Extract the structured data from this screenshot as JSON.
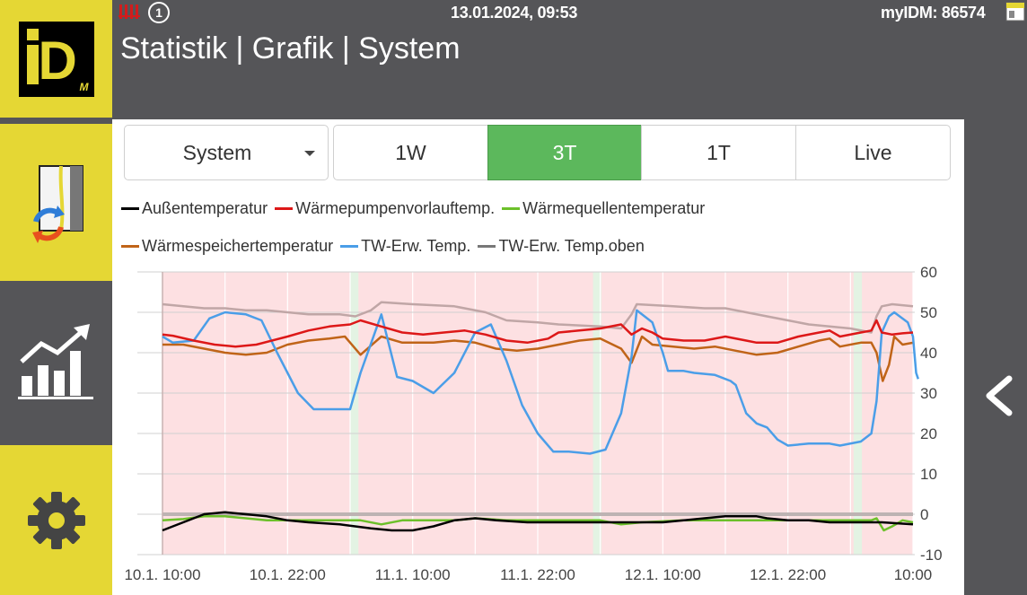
{
  "header": {
    "datetime": "13.01.2024, 09:53",
    "device_id": "myIDM: 86574",
    "badge": "1",
    "title": "Statistik | Grafik | System"
  },
  "sidebar": {
    "items": [
      {
        "name": "idm-logo",
        "icon": "idm-logo"
      },
      {
        "name": "switch-view",
        "icon": "device-switch-icon"
      },
      {
        "name": "statistics",
        "icon": "chart-icon"
      },
      {
        "name": "settings",
        "icon": "gear-icon"
      }
    ]
  },
  "controls": {
    "select": "System",
    "ranges": [
      "1W",
      "3T",
      "1T",
      "Live"
    ],
    "active_range": "3T"
  },
  "colors": {
    "accent_yellow": "#e5d734",
    "active_green": "#5cb85c",
    "background": "#555558"
  },
  "chart_data": {
    "type": "line",
    "ylim": [
      -10,
      60
    ],
    "yticks": [
      "60",
      "50",
      "40",
      "30",
      "20",
      "10",
      "0",
      "-10"
    ],
    "xticks": [
      "10.1. 10:00",
      "10.1. 22:00",
      "11.1. 10:00",
      "11.1. 22:00",
      "12.1. 10:00",
      "12.1. 22:00",
      "10:00"
    ],
    "x_hours": [
      0,
      72
    ],
    "series": [
      {
        "name": "Außentemperatur",
        "color": "#000000",
        "points": [
          [
            0,
            -4
          ],
          [
            2,
            -2
          ],
          [
            4,
            0
          ],
          [
            6,
            0.5
          ],
          [
            8,
            0
          ],
          [
            10,
            -0.5
          ],
          [
            12,
            -1.5
          ],
          [
            14,
            -2
          ],
          [
            17,
            -2.5
          ],
          [
            20,
            -3.5
          ],
          [
            22,
            -4
          ],
          [
            24,
            -4
          ],
          [
            26,
            -3
          ],
          [
            28,
            -1.5
          ],
          [
            30,
            -1
          ],
          [
            32,
            -1.5
          ],
          [
            35,
            -2
          ],
          [
            38,
            -2
          ],
          [
            42,
            -2
          ],
          [
            46,
            -2
          ],
          [
            48,
            -2
          ],
          [
            50,
            -1.5
          ],
          [
            52,
            -1
          ],
          [
            54,
            -0.5
          ],
          [
            57,
            -0.5
          ],
          [
            58,
            -1
          ],
          [
            60,
            -1.5
          ],
          [
            62,
            -1.5
          ],
          [
            64,
            -2
          ],
          [
            66,
            -2
          ],
          [
            67,
            -2
          ],
          [
            69,
            -2
          ],
          [
            72,
            -2.5
          ]
        ]
      },
      {
        "name": "Wärmepumpenvorlauftemp.",
        "color": "#dd1818",
        "points": [
          [
            0,
            44.5
          ],
          [
            1,
            44.2
          ],
          [
            3,
            43
          ],
          [
            5,
            42
          ],
          [
            7,
            41.5
          ],
          [
            9,
            42
          ],
          [
            12,
            44
          ],
          [
            14,
            45.5
          ],
          [
            16,
            46.5
          ],
          [
            18,
            47
          ],
          [
            19,
            48
          ],
          [
            21,
            46.5
          ],
          [
            23,
            45
          ],
          [
            25,
            44.5
          ],
          [
            27,
            45
          ],
          [
            29,
            45.5
          ],
          [
            31,
            44.5
          ],
          [
            33,
            43
          ],
          [
            35,
            42.5
          ],
          [
            37,
            43.5
          ],
          [
            38,
            45
          ],
          [
            40,
            45.5
          ],
          [
            42,
            46
          ],
          [
            44,
            47
          ],
          [
            45,
            44.5
          ],
          [
            46,
            46
          ],
          [
            47,
            45
          ],
          [
            48,
            43.5
          ],
          [
            50,
            43
          ],
          [
            52,
            43
          ],
          [
            54,
            44
          ],
          [
            56,
            43
          ],
          [
            57,
            42.5
          ],
          [
            59,
            42.5
          ],
          [
            61,
            44
          ],
          [
            63,
            45
          ],
          [
            64,
            45.5
          ],
          [
            65,
            44
          ],
          [
            67,
            45
          ],
          [
            68,
            45.5
          ],
          [
            68.5,
            48
          ],
          [
            69,
            45
          ],
          [
            70,
            44.5
          ],
          [
            71,
            44.8
          ],
          [
            72,
            45
          ]
        ]
      },
      {
        "name": "Wärmequellentemperatur",
        "color": "#6cc02a",
        "points": [
          [
            0,
            -1.5
          ],
          [
            2,
            -1.2
          ],
          [
            4,
            -0.5
          ],
          [
            6,
            -0.5
          ],
          [
            8,
            -1
          ],
          [
            10,
            -1.5
          ],
          [
            14,
            -1.5
          ],
          [
            16,
            -1.5
          ],
          [
            18,
            -1.5
          ],
          [
            19,
            -1.5
          ],
          [
            21,
            -2.5
          ],
          [
            23,
            -1.5
          ],
          [
            26,
            -1.5
          ],
          [
            28,
            -1.5
          ],
          [
            30,
            -1
          ],
          [
            33,
            -1.5
          ],
          [
            36,
            -1.5
          ],
          [
            38,
            -1.5
          ],
          [
            40,
            -1.5
          ],
          [
            42,
            -1.5
          ],
          [
            44,
            -2.5
          ],
          [
            46,
            -2
          ],
          [
            50,
            -1.5
          ],
          [
            53,
            -1.5
          ],
          [
            56,
            -1.5
          ],
          [
            59,
            -1.5
          ],
          [
            62,
            -1.5
          ],
          [
            64,
            -1.5
          ],
          [
            66,
            -1.5
          ],
          [
            67,
            -1.5
          ],
          [
            68,
            -1.5
          ],
          [
            68.5,
            -1
          ],
          [
            69.2,
            -4
          ],
          [
            70,
            -3
          ],
          [
            71,
            -1.5
          ],
          [
            72,
            -2
          ]
        ]
      },
      {
        "name": "Wärmespeichertemperatur",
        "color": "#c06418",
        "points": [
          [
            0,
            42
          ],
          [
            2,
            42
          ],
          [
            4,
            41
          ],
          [
            6,
            40
          ],
          [
            8,
            39.5
          ],
          [
            10,
            40
          ],
          [
            12,
            42
          ],
          [
            14,
            43
          ],
          [
            16,
            43.5
          ],
          [
            17.5,
            44
          ],
          [
            19,
            39.5
          ],
          [
            21,
            44
          ],
          [
            23,
            42.5
          ],
          [
            26,
            42.5
          ],
          [
            28,
            43
          ],
          [
            30,
            42.5
          ],
          [
            32,
            41
          ],
          [
            34,
            40.5
          ],
          [
            36,
            41
          ],
          [
            38,
            42
          ],
          [
            40,
            43
          ],
          [
            42,
            43.5
          ],
          [
            44,
            41
          ],
          [
            45,
            37.5
          ],
          [
            46,
            44
          ],
          [
            47,
            42
          ],
          [
            49,
            41.5
          ],
          [
            51,
            41
          ],
          [
            53,
            41.5
          ],
          [
            55,
            40.5
          ],
          [
            57,
            39.5
          ],
          [
            59,
            40
          ],
          [
            61,
            41.5
          ],
          [
            63,
            43
          ],
          [
            64,
            43.5
          ],
          [
            65,
            41.5
          ],
          [
            67,
            42.5
          ],
          [
            68,
            42.5
          ],
          [
            68.5,
            40
          ],
          [
            69.1,
            33
          ],
          [
            69.7,
            37
          ],
          [
            70.2,
            44
          ],
          [
            71,
            42
          ],
          [
            72,
            42.5
          ]
        ]
      },
      {
        "name": "TW-Erw. Temp.",
        "color": "#4b9ee8",
        "points": [
          [
            0,
            44
          ],
          [
            1,
            42.5
          ],
          [
            3,
            43
          ],
          [
            4.5,
            48.5
          ],
          [
            6,
            50
          ],
          [
            8,
            49.5
          ],
          [
            9.5,
            48
          ],
          [
            11,
            40
          ],
          [
            13,
            30
          ],
          [
            14.5,
            26
          ],
          [
            16,
            26
          ],
          [
            17,
            26
          ],
          [
            18,
            26
          ],
          [
            19,
            35
          ],
          [
            21,
            49.5
          ],
          [
            22.5,
            34
          ],
          [
            24,
            33
          ],
          [
            26,
            30
          ],
          [
            28,
            35
          ],
          [
            30,
            45
          ],
          [
            31.5,
            47
          ],
          [
            33,
            38
          ],
          [
            34.5,
            27
          ],
          [
            36,
            20
          ],
          [
            37.5,
            15.5
          ],
          [
            39,
            15.5
          ],
          [
            41,
            15
          ],
          [
            42.5,
            16
          ],
          [
            44,
            25
          ],
          [
            45,
            39
          ],
          [
            45.5,
            50.5
          ],
          [
            47,
            47.5
          ],
          [
            48,
            40
          ],
          [
            48.5,
            35.5
          ],
          [
            50,
            35.5
          ],
          [
            51,
            35
          ],
          [
            53,
            34.5
          ],
          [
            54.5,
            33
          ],
          [
            55,
            32
          ],
          [
            56,
            25
          ],
          [
            57,
            22.5
          ],
          [
            58,
            21.5
          ],
          [
            59,
            18.5
          ],
          [
            60,
            17
          ],
          [
            62,
            17.5
          ],
          [
            64,
            17.5
          ],
          [
            65,
            17
          ],
          [
            67,
            18
          ],
          [
            68,
            20
          ],
          [
            68.5,
            28
          ],
          [
            69,
            45
          ],
          [
            69.7,
            49
          ],
          [
            70.2,
            50
          ],
          [
            71.5,
            47.5
          ],
          [
            72,
            44
          ],
          [
            72.3,
            35
          ],
          [
            72.5,
            33.5
          ]
        ]
      },
      {
        "name": "TW-Erw. Temp.oben",
        "color": "#c0a6a6",
        "points": [
          [
            0,
            52
          ],
          [
            2,
            51.5
          ],
          [
            4,
            51
          ],
          [
            6,
            51
          ],
          [
            8,
            50.5
          ],
          [
            10,
            50.5
          ],
          [
            12,
            50
          ],
          [
            14,
            49.5
          ],
          [
            17,
            49.5
          ],
          [
            18.5,
            49
          ],
          [
            20,
            50.5
          ],
          [
            21,
            52.5
          ],
          [
            24,
            52
          ],
          [
            28,
            51.5
          ],
          [
            31,
            50
          ],
          [
            33,
            48
          ],
          [
            36,
            47.5
          ],
          [
            38,
            47
          ],
          [
            42,
            46.5
          ],
          [
            44,
            46
          ],
          [
            45,
            49.5
          ],
          [
            45.5,
            52
          ],
          [
            49,
            51.5
          ],
          [
            52,
            51
          ],
          [
            54,
            51
          ],
          [
            56,
            50
          ],
          [
            58,
            49
          ],
          [
            60,
            48
          ],
          [
            62,
            47
          ],
          [
            64,
            46.5
          ],
          [
            66,
            46
          ],
          [
            68,
            45
          ],
          [
            68.5,
            49
          ],
          [
            69,
            51.5
          ],
          [
            70,
            52
          ],
          [
            72,
            51.5
          ]
        ]
      }
    ],
    "background_bands": {
      "heating": "#fde0e2",
      "off": "#e3f3e3"
    }
  }
}
